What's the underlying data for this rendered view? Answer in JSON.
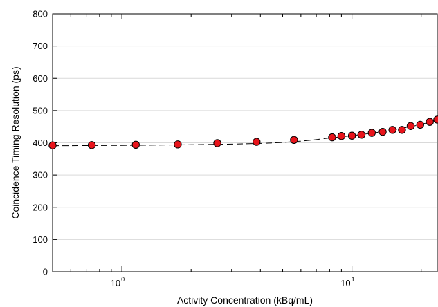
{
  "chart_data": {
    "type": "scatter",
    "xlabel": "Activity Concentration (kBq/mL)",
    "ylabel": "Coincidence Timing Resolution (ps)",
    "x_scale": "log",
    "xlim": [
      0.5,
      23.5
    ],
    "ylim": [
      0,
      800
    ],
    "y_ticks": [
      0,
      100,
      200,
      300,
      400,
      500,
      600,
      700,
      800
    ],
    "x_tick_labels": [
      {
        "value": 1,
        "base": "10",
        "exp": "0"
      },
      {
        "value": 10,
        "base": "10",
        "exp": "1"
      }
    ],
    "grid": "horizontal",
    "marker_color": "#e8141b",
    "marker_edge_color": "#000000",
    "fit_line": "dashed",
    "series": [
      {
        "x": [
          0.5,
          0.74,
          1.15,
          1.75,
          2.6,
          3.85,
          5.6,
          8.2,
          9.0,
          10.0,
          11.0,
          12.2,
          13.6,
          15.0,
          16.5,
          18.0,
          19.8,
          21.8,
          23.5
        ],
        "y": [
          392,
          393,
          394,
          395,
          399,
          403,
          409,
          417,
          421,
          422,
          425,
          431,
          434,
          440,
          440,
          452,
          456,
          465,
          472
        ]
      }
    ],
    "fit": {
      "x": [
        0.5,
        1.0,
        2.0,
        3.0,
        4.0,
        5.0,
        6.0,
        7.0,
        8.0,
        10.0,
        12.0,
        14.0,
        16.0,
        18.0,
        20.0,
        22.0,
        23.5
      ],
      "y": [
        391,
        392,
        394,
        396,
        398,
        401,
        405,
        410,
        415,
        422,
        429,
        436,
        443,
        450,
        457,
        465,
        471
      ]
    }
  }
}
